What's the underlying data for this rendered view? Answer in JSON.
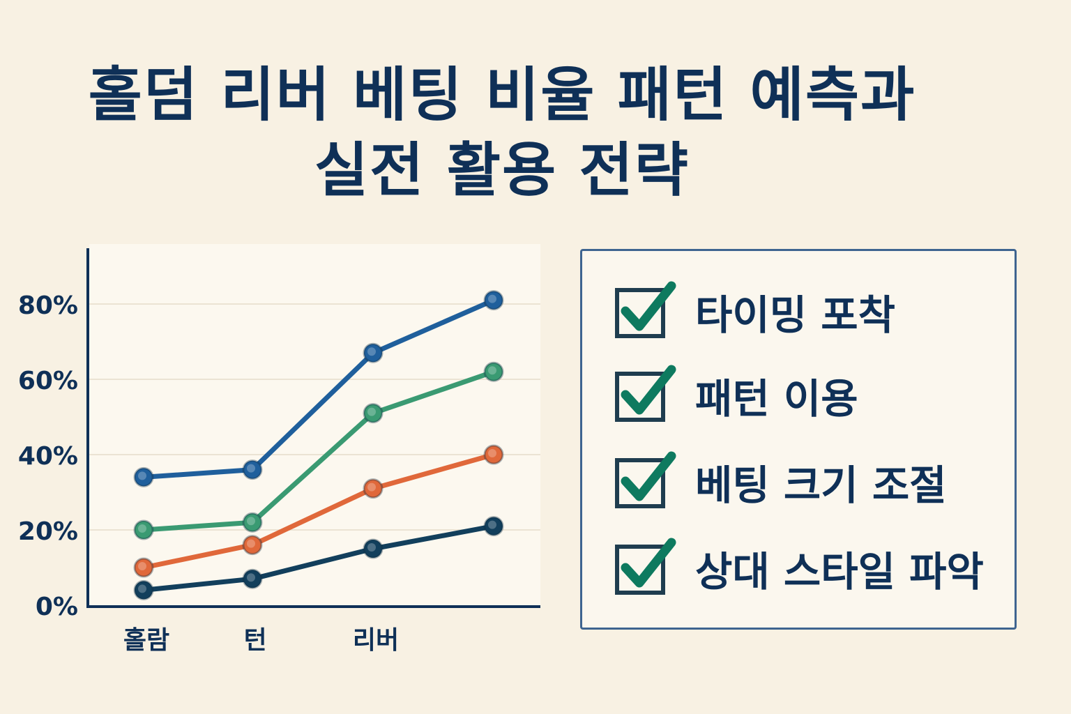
{
  "title": {
    "line1": "홀덤 리버 베팅 비율 패턴 예측과",
    "line2": "실전 활용 전략"
  },
  "chart_data": {
    "type": "line",
    "title": "",
    "xlabel": "",
    "ylabel": "",
    "categories": [
      "홀람",
      "턴",
      "리버",
      ""
    ],
    "ylim": [
      0,
      90
    ],
    "yticks": [
      "0%",
      "20%",
      "40%",
      "60%",
      "80%"
    ],
    "grid": true,
    "series": [
      {
        "color": "#1f5f9c",
        "values": [
          34,
          36,
          67,
          81
        ]
      },
      {
        "color": "#3a9a72",
        "values": [
          20,
          22,
          51,
          62
        ]
      },
      {
        "color": "#e0683a",
        "values": [
          10,
          16,
          31,
          40
        ]
      },
      {
        "color": "#123f5c",
        "values": [
          4,
          7,
          15,
          21
        ]
      }
    ]
  },
  "checklist": {
    "check_color": "#0e7a5f",
    "box_color": "#1f3d4f",
    "items": [
      {
        "label": "타이밍 포착",
        "checked": true,
        "icon": "checkbox-checked-icon"
      },
      {
        "label": "패턴 이용",
        "checked": true,
        "icon": "checkbox-checked-icon"
      },
      {
        "label": "베팅 크기 조절",
        "checked": true,
        "icon": "checkbox-checked-icon"
      },
      {
        "label": "상대 스타일 파악",
        "checked": true,
        "icon": "checkbox-checked-icon"
      }
    ]
  }
}
